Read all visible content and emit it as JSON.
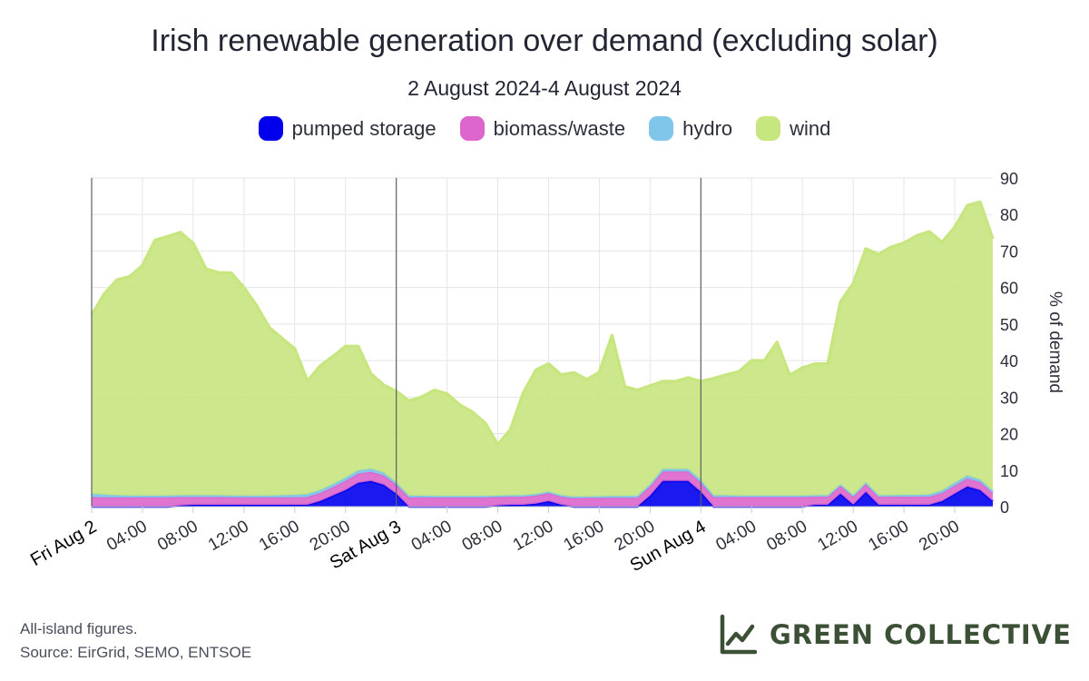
{
  "chart_data": {
    "type": "area",
    "stacked": true,
    "title": "Irish renewable generation over demand (excluding solar)",
    "subtitle": "2 August 2024-4 August 2024",
    "ylabel": "% of demand",
    "ylim": [
      0,
      90
    ],
    "yticks": [
      "0",
      "10",
      "20",
      "30",
      "40",
      "50",
      "60",
      "70",
      "80",
      "90"
    ],
    "xlim_hours": [
      0,
      71
    ],
    "x_ticks": [
      {
        "hour": 0,
        "label": "Fri Aug 2",
        "major": true
      },
      {
        "hour": 4,
        "label": "04:00",
        "major": false
      },
      {
        "hour": 8,
        "label": "08:00",
        "major": false
      },
      {
        "hour": 12,
        "label": "12:00",
        "major": false
      },
      {
        "hour": 16,
        "label": "16:00",
        "major": false
      },
      {
        "hour": 20,
        "label": "20:00",
        "major": false
      },
      {
        "hour": 24,
        "label": "Sat Aug 3",
        "major": true
      },
      {
        "hour": 28,
        "label": "04:00",
        "major": false
      },
      {
        "hour": 32,
        "label": "08:00",
        "major": false
      },
      {
        "hour": 36,
        "label": "12:00",
        "major": false
      },
      {
        "hour": 40,
        "label": "16:00",
        "major": false
      },
      {
        "hour": 44,
        "label": "20:00",
        "major": false
      },
      {
        "hour": 48,
        "label": "Sun Aug 4",
        "major": true
      },
      {
        "hour": 52,
        "label": "04:00",
        "major": false
      },
      {
        "hour": 56,
        "label": "08:00",
        "major": false
      },
      {
        "hour": 60,
        "label": "12:00",
        "major": false
      },
      {
        "hour": 64,
        "label": "16:00",
        "major": false
      },
      {
        "hour": 68,
        "label": "20:00",
        "major": false
      }
    ],
    "grid": true,
    "legend_position": "top-center",
    "series_order": [
      "pumped storage",
      "biomass/waste",
      "hydro",
      "wind"
    ],
    "x_hours": [
      0,
      1,
      2,
      3,
      4,
      5,
      6,
      7,
      8,
      9,
      10,
      11,
      12,
      13,
      14,
      15,
      16,
      17,
      18,
      19,
      20,
      21,
      22,
      23,
      24,
      25,
      26,
      27,
      28,
      29,
      30,
      31,
      32,
      33,
      34,
      35,
      36,
      37,
      38,
      39,
      40,
      41,
      42,
      43,
      44,
      45,
      46,
      47,
      48,
      49,
      50,
      51,
      52,
      53,
      54,
      55,
      56,
      57,
      58,
      59,
      60,
      61,
      62,
      63,
      64,
      65,
      66,
      67,
      68,
      69,
      70,
      71
    ],
    "series": [
      {
        "name": "pumped storage",
        "color": "#0000ee",
        "values": [
          0,
          0,
          0,
          0,
          0,
          0,
          0,
          0.3,
          0.5,
          0.5,
          0.5,
          0.5,
          0.5,
          0.5,
          0.5,
          0.5,
          0.5,
          0.5,
          1.5,
          3,
          4.5,
          6.5,
          7,
          6,
          3.5,
          0,
          0,
          0,
          0,
          0,
          0,
          0,
          0.3,
          0.5,
          0.5,
          0.8,
          1.5,
          0.5,
          0,
          0,
          0,
          0,
          0,
          0,
          3,
          7,
          7,
          7,
          4,
          0,
          0,
          0,
          0,
          0,
          0,
          0,
          0,
          0.5,
          0.5,
          3.5,
          0.5,
          4,
          0.5,
          0.5,
          0.5,
          0.5,
          0.5,
          1.5,
          3.5,
          5.5,
          4.5,
          1.5
        ]
      },
      {
        "name": "biomass/waste",
        "color": "#dd66cc",
        "values": [
          2.6,
          2.5,
          2.5,
          2.5,
          2.5,
          2.5,
          2.5,
          2.3,
          2.1,
          2.1,
          2.1,
          2,
          2,
          2,
          2,
          2,
          2,
          2.1,
          2.2,
          2.3,
          2.5,
          2.5,
          2.5,
          2.5,
          2.5,
          2.5,
          2.5,
          2.5,
          2.5,
          2.5,
          2.5,
          2.5,
          2.3,
          2.2,
          2.2,
          2.2,
          2.2,
          2.2,
          2.3,
          2.4,
          2.4,
          2.4,
          2.4,
          2.4,
          2.5,
          2.6,
          2.6,
          2.6,
          2.6,
          2.6,
          2.6,
          2.6,
          2.6,
          2.6,
          2.6,
          2.6,
          2.6,
          2.2,
          2.2,
          2.2,
          2.2,
          2.2,
          2.2,
          2.2,
          2.2,
          2.2,
          2.2,
          2.2,
          2.2,
          2.2,
          2.2,
          2.2
        ]
      },
      {
        "name": "hydro",
        "color": "#7fc6ea",
        "values": [
          0.9,
          0.8,
          0.6,
          0.5,
          0.5,
          0.5,
          0.5,
          0.5,
          0.5,
          0.5,
          0.5,
          0.5,
          0.5,
          0.5,
          0.5,
          0.6,
          0.7,
          0.8,
          0.8,
          0.8,
          0.9,
          0.9,
          0.9,
          0.8,
          0.6,
          0.5,
          0.5,
          0.4,
          0.4,
          0.4,
          0.4,
          0.4,
          0.4,
          0.4,
          0.4,
          0.4,
          0.4,
          0.4,
          0.4,
          0.4,
          0.4,
          0.5,
          0.5,
          0.5,
          0.6,
          0.7,
          0.7,
          0.7,
          0.7,
          0.5,
          0.5,
          0.4,
          0.4,
          0.4,
          0.4,
          0.4,
          0.4,
          0.4,
          0.4,
          0.4,
          0.4,
          0.4,
          0.4,
          0.4,
          0.5,
          0.5,
          0.6,
          0.7,
          0.8,
          0.8,
          0.7,
          0.6
        ]
      },
      {
        "name": "wind",
        "color": "#c8e680",
        "values": [
          49,
          55,
          59,
          60,
          63,
          70,
          71,
          72,
          69,
          62,
          61,
          61,
          57,
          52,
          46,
          43,
          40,
          31,
          34,
          35,
          36,
          34,
          26,
          24,
          25,
          26,
          27,
          29,
          28,
          25,
          23,
          20,
          14,
          18,
          28,
          34,
          35,
          33,
          34,
          32,
          34,
          44,
          30,
          29,
          27,
          24,
          24,
          25,
          27,
          32,
          33,
          34,
          37,
          37,
          42,
          33,
          35,
          36,
          36,
          50,
          58,
          64,
          66,
          68,
          69,
          71,
          72,
          68,
          70,
          74,
          76,
          69
        ]
      }
    ],
    "footnote_lines": [
      "All-island figures.",
      "Source: EirGrid, SEMO, ENTSOE"
    ],
    "brand_name": "GREEN COLLECTIVE"
  }
}
